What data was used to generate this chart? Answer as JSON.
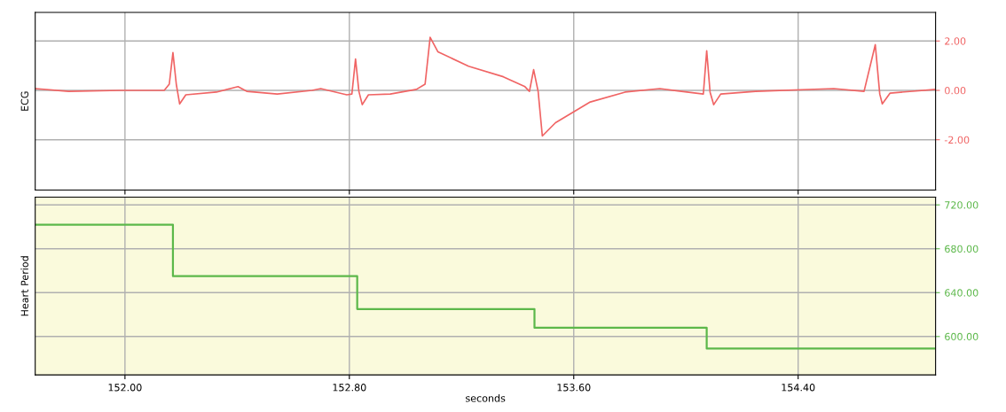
{
  "chart_data": [
    {
      "type": "line",
      "ylabel": "ECG",
      "xlim": [
        151.68,
        154.89
      ],
      "ylim": [
        -4.04,
        3.16
      ],
      "grid": true,
      "tick_labels": "y",
      "xticks": [
        {
          "value": 152.0,
          "label": null
        },
        {
          "value": 152.8,
          "label": null
        },
        {
          "value": 153.6,
          "label": null
        },
        {
          "value": 154.4,
          "label": null
        }
      ],
      "yticks": [
        {
          "value": 2,
          "label": "2.00"
        },
        {
          "value": 0,
          "label": "0.00"
        },
        {
          "value": -2,
          "label": "-2.00"
        }
      ],
      "x": [
        151.681,
        151.799,
        151.985,
        152.14,
        152.158,
        152.171,
        152.183,
        152.195,
        152.217,
        152.326,
        152.403,
        152.434,
        152.543,
        152.667,
        152.698,
        152.791,
        152.809,
        152.822,
        152.834,
        152.846,
        152.868,
        152.946,
        153.039,
        153.07,
        153.088,
        153.116,
        153.225,
        153.349,
        153.426,
        153.442,
        153.457,
        153.473,
        153.488,
        153.535,
        153.659,
        153.783,
        153.907,
        154.062,
        154.074,
        154.086,
        154.099,
        154.124,
        154.248,
        154.527,
        154.635,
        154.675,
        154.691,
        154.7,
        154.728,
        154.89
      ],
      "series": [
        {
          "color": "#f06464",
          "values": [
            0.07,
            -0.04,
            0,
            0,
            0.25,
            1.53,
            0.25,
            -0.55,
            -0.18,
            -0.07,
            0.15,
            -0.04,
            -0.15,
            0,
            0.07,
            -0.18,
            -0.15,
            1.27,
            -0.04,
            -0.58,
            -0.18,
            -0.15,
            0.04,
            0.25,
            2.15,
            1.56,
            0.98,
            0.55,
            0.15,
            -0.04,
            0.84,
            -0.04,
            -1.85,
            -1.31,
            -0.47,
            -0.07,
            0.07,
            -0.15,
            1.6,
            -0.07,
            -0.58,
            -0.15,
            -0.04,
            0.07,
            -0.04,
            1.85,
            -0.15,
            -0.55,
            -0.11,
            0.04
          ]
        }
      ]
    },
    {
      "type": "step",
      "ylabel": "Heart Period",
      "xlabel": "seconds",
      "xlim": [
        151.68,
        154.89
      ],
      "ylim": [
        565,
        727
      ],
      "grid": true,
      "xticks": [
        {
          "value": 152.0,
          "label": "152.00"
        },
        {
          "value": 152.8,
          "label": "152.80"
        },
        {
          "value": 153.6,
          "label": "153.60"
        },
        {
          "value": 154.4,
          "label": "154.40"
        }
      ],
      "yticks": [
        {
          "value": 720,
          "label": "720.00"
        },
        {
          "value": 680,
          "label": "680.00"
        },
        {
          "value": 640,
          "label": "640.00"
        },
        {
          "value": 600,
          "label": "600.00"
        }
      ],
      "x": [
        151.68,
        152.171,
        152.828,
        153.46,
        154.074,
        154.89
      ],
      "series": [
        {
          "color": "#5cb84a",
          "values": [
            702,
            655,
            625,
            608,
            589,
            589
          ]
        }
      ]
    }
  ]
}
